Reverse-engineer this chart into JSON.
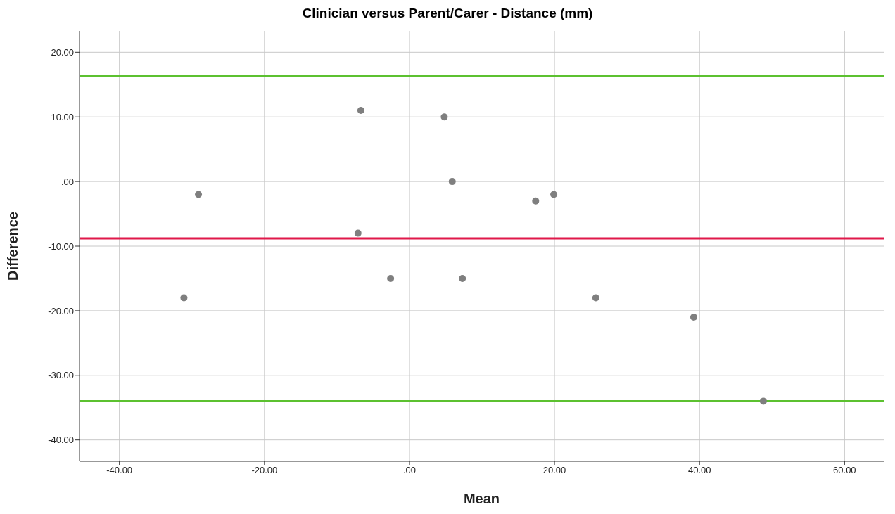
{
  "chart_data": {
    "type": "scatter",
    "title": "Clinician versus Parent/Carer - Distance (mm)",
    "xlabel": "Mean",
    "ylabel": "Difference",
    "x": [
      -31.1,
      -29.1,
      -6.7,
      -7.1,
      -2.6,
      4.8,
      5.9,
      7.3,
      17.4,
      19.9,
      25.7,
      39.2,
      48.8
    ],
    "values": [
      -18,
      -2,
      11,
      -8,
      -15,
      10,
      0,
      -15,
      -3,
      -2,
      -18,
      -21,
      -34
    ],
    "color": "#7f7f7f",
    "marker": "circle",
    "grid": true,
    "xlim": [
      -45.5,
      65.4
    ],
    "ylim": [
      -43.3,
      23.3
    ],
    "xticks": [
      {
        "value": -40,
        "label": "-40.00"
      },
      {
        "value": -20,
        "label": "-20.00"
      },
      {
        "value": 0,
        "label": ".00"
      },
      {
        "value": 20,
        "label": "20.00"
      },
      {
        "value": 40,
        "label": "40.00"
      },
      {
        "value": 60,
        "label": "60.00"
      }
    ],
    "yticks": [
      {
        "value": -40,
        "label": "-40.00"
      },
      {
        "value": -30,
        "label": "-30.00"
      },
      {
        "value": -20,
        "label": "-20.00"
      },
      {
        "value": -10,
        "label": "-10.00"
      },
      {
        "value": 0,
        "label": ".00"
      },
      {
        "value": 10,
        "label": "10.00"
      },
      {
        "value": 20,
        "label": "20.00"
      }
    ],
    "ref_lines": [
      {
        "axis": "y",
        "value": 16.4,
        "color": "#5cc130"
      },
      {
        "axis": "y",
        "value": -8.8,
        "color": "#e0194a"
      },
      {
        "axis": "y",
        "value": -34,
        "color": "#5cc130"
      }
    ]
  }
}
